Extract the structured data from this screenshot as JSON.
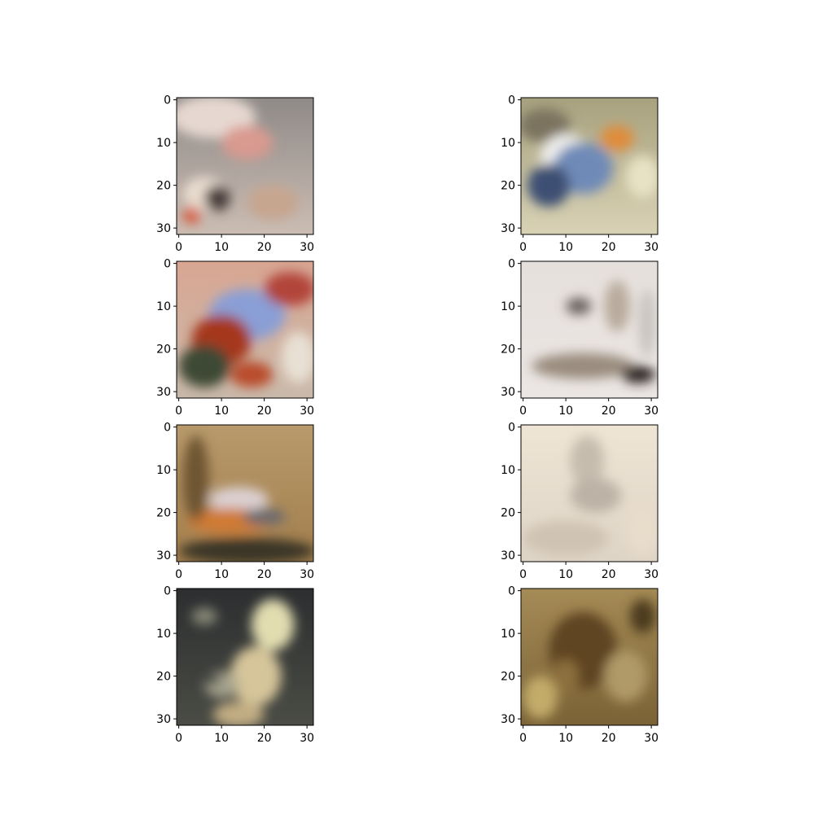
{
  "chart_data": [
    {
      "type": "heatmap",
      "panel": "row-1-col-1",
      "xlim": [
        -0.5,
        31.5
      ],
      "ylim": [
        31.5,
        -0.5
      ],
      "xticks": [
        0,
        10,
        20,
        30
      ],
      "yticks": [
        0,
        10,
        20,
        30
      ],
      "xtick_labels": [
        "0",
        "10",
        "20",
        "30"
      ],
      "ytick_labels": [
        "0",
        "10",
        "20",
        "30"
      ],
      "image_colors": {
        "base": "#cbbdb3",
        "top": "#8f8a88",
        "accents": [
          {
            "x": 8,
            "y": 4,
            "rx": 10,
            "ry": 5,
            "color": "#e6d8d0"
          },
          {
            "x": 16,
            "y": 10,
            "rx": 6,
            "ry": 4,
            "color": "#d99a90"
          },
          {
            "x": 6,
            "y": 22,
            "rx": 5,
            "ry": 4,
            "color": "#e9dccf"
          },
          {
            "x": 9,
            "y": 23,
            "rx": 3,
            "ry": 3,
            "color": "#4a3e3a"
          },
          {
            "x": 3,
            "y": 27,
            "rx": 2,
            "ry": 2,
            "color": "#d95a3a"
          },
          {
            "x": 22,
            "y": 24,
            "rx": 6,
            "ry": 4,
            "color": "#c7a58f"
          }
        ]
      }
    },
    {
      "type": "heatmap",
      "panel": "row-1-col-2",
      "xlim": [
        -0.5,
        31.5
      ],
      "ylim": [
        31.5,
        -0.5
      ],
      "xticks": [
        0,
        10,
        20,
        30
      ],
      "yticks": [
        0,
        10,
        20,
        30
      ],
      "xtick_labels": [
        "0",
        "10",
        "20",
        "30"
      ],
      "ytick_labels": [
        "0",
        "10",
        "20",
        "30"
      ],
      "image_colors": {
        "base": "#d9d2b5",
        "top": "#a7a17e",
        "accents": [
          {
            "x": 5,
            "y": 6,
            "rx": 6,
            "ry": 4,
            "color": "#7c735f"
          },
          {
            "x": 10,
            "y": 14,
            "rx": 6,
            "ry": 6,
            "color": "#f0f0ee"
          },
          {
            "x": 14,
            "y": 16,
            "rx": 7,
            "ry": 6,
            "color": "#6f8ab8"
          },
          {
            "x": 6,
            "y": 20,
            "rx": 5,
            "ry": 5,
            "color": "#3e4f73"
          },
          {
            "x": 22,
            "y": 9,
            "rx": 4,
            "ry": 3,
            "color": "#df8c3a"
          },
          {
            "x": 28,
            "y": 18,
            "rx": 4,
            "ry": 5,
            "color": "#e8e2c5"
          }
        ]
      }
    },
    {
      "type": "heatmap",
      "panel": "row-2-col-1",
      "xlim": [
        -0.5,
        31.5
      ],
      "ylim": [
        31.5,
        -0.5
      ],
      "xticks": [
        0,
        10,
        20,
        30
      ],
      "yticks": [
        0,
        10,
        20,
        30
      ],
      "xtick_labels": [
        "0",
        "10",
        "20",
        "30"
      ],
      "ytick_labels": [
        "0",
        "10",
        "20",
        "30"
      ],
      "image_colors": {
        "base": "#c9b9aa",
        "top": "#d8a692",
        "accents": [
          {
            "x": 16,
            "y": 12,
            "rx": 9,
            "ry": 6,
            "color": "#8a9fd6"
          },
          {
            "x": 10,
            "y": 18,
            "rx": 7,
            "ry": 6,
            "color": "#a5381f"
          },
          {
            "x": 6,
            "y": 24,
            "rx": 6,
            "ry": 5,
            "color": "#3d4a35"
          },
          {
            "x": 26,
            "y": 6,
            "rx": 6,
            "ry": 4,
            "color": "#b2453a"
          },
          {
            "x": 28,
            "y": 22,
            "rx": 4,
            "ry": 6,
            "color": "#e8e0d4"
          },
          {
            "x": 17,
            "y": 26,
            "rx": 5,
            "ry": 3,
            "color": "#b94b2a"
          }
        ]
      }
    },
    {
      "type": "heatmap",
      "panel": "row-2-col-2",
      "xlim": [
        -0.5,
        31.5
      ],
      "ylim": [
        31.5,
        -0.5
      ],
      "xticks": [
        0,
        10,
        20,
        30
      ],
      "yticks": [
        0,
        10,
        20,
        30
      ],
      "xtick_labels": [
        "0",
        "10",
        "20",
        "30"
      ],
      "ytick_labels": [
        "0",
        "10",
        "20",
        "30"
      ],
      "image_colors": {
        "base": "#ebe6e4",
        "top": "#e6e0dc",
        "accents": [
          {
            "x": 13,
            "y": 10,
            "rx": 3,
            "ry": 2,
            "color": "#6a6260"
          },
          {
            "x": 22,
            "y": 10,
            "rx": 3,
            "ry": 6,
            "color": "#b9ab9c"
          },
          {
            "x": 14,
            "y": 24,
            "rx": 12,
            "ry": 3,
            "color": "#9a8c7e"
          },
          {
            "x": 27,
            "y": 26,
            "rx": 4,
            "ry": 2,
            "color": "#2a2424"
          },
          {
            "x": 29,
            "y": 14,
            "rx": 2,
            "ry": 8,
            "color": "#c8c4c0"
          }
        ]
      }
    },
    {
      "type": "heatmap",
      "panel": "row-3-col-1",
      "xlim": [
        -0.5,
        31.5
      ],
      "ylim": [
        31.5,
        -0.5
      ],
      "xticks": [
        0,
        10,
        20,
        30
      ],
      "yticks": [
        0,
        10,
        20,
        30
      ],
      "xtick_labels": [
        "0",
        "10",
        "20",
        "30"
      ],
      "ytick_labels": [
        "0",
        "10",
        "20",
        "30"
      ],
      "image_colors": {
        "base": "#a27e4c",
        "top": "#b89a6c",
        "accents": [
          {
            "x": 14,
            "y": 17,
            "rx": 7,
            "ry": 3,
            "color": "#dcd0d2"
          },
          {
            "x": 12,
            "y": 22,
            "rx": 10,
            "ry": 3,
            "color": "#d07a35"
          },
          {
            "x": 20,
            "y": 21,
            "rx": 5,
            "ry": 2,
            "color": "#6c6a6e"
          },
          {
            "x": 16,
            "y": 29,
            "rx": 16,
            "ry": 3,
            "color": "#3b3427"
          },
          {
            "x": 4,
            "y": 12,
            "rx": 3,
            "ry": 10,
            "color": "#6e5430"
          }
        ]
      }
    },
    {
      "type": "heatmap",
      "panel": "row-3-col-2",
      "xlim": [
        -0.5,
        31.5
      ],
      "ylim": [
        31.5,
        -0.5
      ],
      "xticks": [
        0,
        10,
        20,
        30
      ],
      "yticks": [
        0,
        10,
        20,
        30
      ],
      "xtick_labels": [
        "0",
        "10",
        "20",
        "30"
      ],
      "ytick_labels": [
        "0",
        "10",
        "20",
        "30"
      ],
      "image_colors": {
        "base": "#ded4c6",
        "top": "#efe5d5",
        "accents": [
          {
            "x": 15,
            "y": 8,
            "rx": 4,
            "ry": 6,
            "color": "#c6bcae"
          },
          {
            "x": 17,
            "y": 16,
            "rx": 6,
            "ry": 4,
            "color": "#bcb2a6"
          },
          {
            "x": 10,
            "y": 26,
            "rx": 10,
            "ry": 4,
            "color": "#cfc3b2"
          },
          {
            "x": 28,
            "y": 24,
            "rx": 4,
            "ry": 6,
            "color": "#e8dccb"
          }
        ]
      }
    },
    {
      "type": "heatmap",
      "panel": "row-4-col-1",
      "xlim": [
        -0.5,
        31.5
      ],
      "ylim": [
        31.5,
        -0.5
      ],
      "xticks": [
        0,
        10,
        20,
        30
      ],
      "yticks": [
        0,
        10,
        20,
        30
      ],
      "xtick_labels": [
        "0",
        "10",
        "20",
        "30"
      ],
      "ytick_labels": [
        "0",
        "10",
        "20",
        "30"
      ],
      "image_colors": {
        "base": "#4a4c45",
        "top": "#2c2e30",
        "accents": [
          {
            "x": 22,
            "y": 8,
            "rx": 5,
            "ry": 6,
            "color": "#e2ddb0"
          },
          {
            "x": 18,
            "y": 20,
            "rx": 6,
            "ry": 7,
            "color": "#d6c59a"
          },
          {
            "x": 10,
            "y": 22,
            "rx": 4,
            "ry": 3,
            "color": "#a8a690"
          },
          {
            "x": 8,
            "y": 21,
            "rx": 2,
            "ry": 1,
            "color": "#1d2531"
          },
          {
            "x": 14,
            "y": 29,
            "rx": 6,
            "ry": 3,
            "color": "#c2ad83"
          },
          {
            "x": 6,
            "y": 6,
            "rx": 3,
            "ry": 2,
            "color": "#878876"
          }
        ]
      }
    },
    {
      "type": "heatmap",
      "panel": "row-4-col-2",
      "xlim": [
        -0.5,
        31.5
      ],
      "ylim": [
        31.5,
        -0.5
      ],
      "xticks": [
        0,
        10,
        20,
        30
      ],
      "yticks": [
        0,
        10,
        20,
        30
      ],
      "xtick_labels": [
        "0",
        "10",
        "20",
        "30"
      ],
      "ytick_labels": [
        "0",
        "10",
        "20",
        "30"
      ],
      "image_colors": {
        "base": "#7a6236",
        "top": "#a58b56",
        "accents": [
          {
            "x": 14,
            "y": 14,
            "rx": 8,
            "ry": 9,
            "color": "#5e4520"
          },
          {
            "x": 4,
            "y": 25,
            "rx": 4,
            "ry": 5,
            "color": "#c3ac6a"
          },
          {
            "x": 24,
            "y": 20,
            "rx": 5,
            "ry": 6,
            "color": "#b09a68"
          },
          {
            "x": 10,
            "y": 20,
            "rx": 3,
            "ry": 4,
            "color": "#8c6f3e"
          },
          {
            "x": 28,
            "y": 6,
            "rx": 3,
            "ry": 4,
            "color": "#4c3a1e"
          }
        ]
      }
    }
  ]
}
